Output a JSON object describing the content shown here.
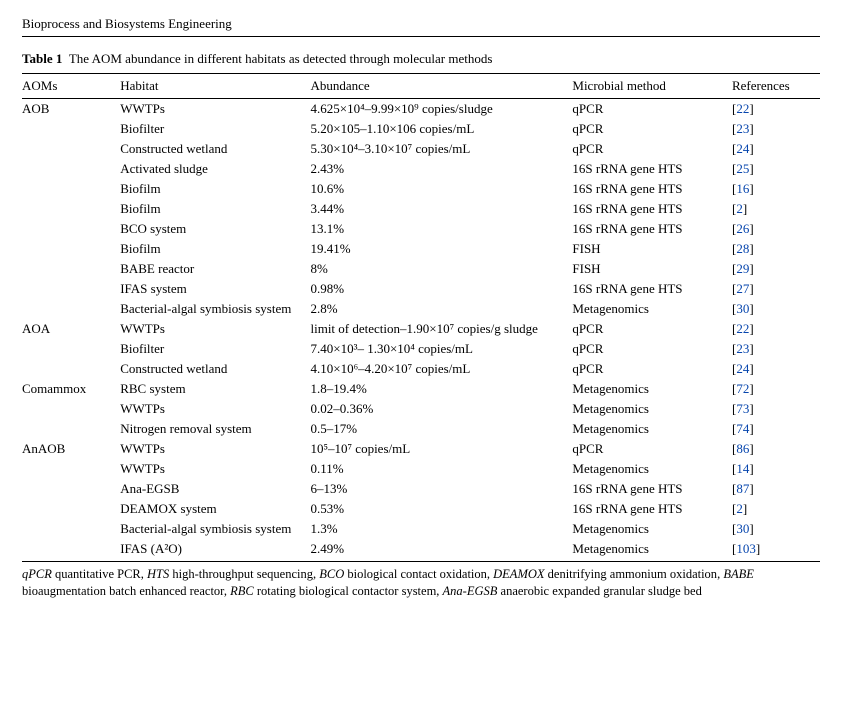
{
  "journal": "Bioprocess and Biosystems Engineering",
  "table": {
    "label": "Table 1",
    "caption": "The AOM abundance in different habitats as detected through molecular methods",
    "columns": [
      "AOMs",
      "Habitat",
      "Abundance",
      "Microbial method",
      "References"
    ],
    "rows": [
      {
        "group": "AOB",
        "groupFirst": true,
        "habitat": "WWTPs",
        "abundance": "4.625×10⁴–9.99×10⁹ copies/sludge",
        "method": "qPCR",
        "ref": "22"
      },
      {
        "group": "AOB",
        "habitat": "Biofilter",
        "abundance": "5.20×105–1.10×106 copies/mL",
        "method": "qPCR",
        "ref": "23"
      },
      {
        "group": "AOB",
        "habitat": "Constructed wetland",
        "abundance": "5.30×10⁴–3.10×10⁷ copies/mL",
        "method": "qPCR",
        "ref": "24"
      },
      {
        "group": "AOB",
        "habitat": "Activated sludge",
        "abundance": "2.43%",
        "method": "16S rRNA gene HTS",
        "ref": "25"
      },
      {
        "group": "AOB",
        "habitat": "Biofilm",
        "abundance": "10.6%",
        "method": "16S rRNA gene HTS",
        "ref": "16"
      },
      {
        "group": "AOB",
        "habitat": "Biofilm",
        "abundance": "3.44%",
        "method": "16S rRNA gene HTS",
        "ref": "2"
      },
      {
        "group": "AOB",
        "habitat": "BCO system",
        "abundance": "13.1%",
        "method": "16S rRNA gene HTS",
        "ref": "26"
      },
      {
        "group": "AOB",
        "habitat": "Biofilm",
        "abundance": "19.41%",
        "method": "FISH",
        "ref": "28"
      },
      {
        "group": "AOB",
        "habitat": "BABE reactor",
        "abundance": "8%",
        "method": "FISH",
        "ref": "29"
      },
      {
        "group": "AOB",
        "habitat": "IFAS system",
        "abundance": "0.98%",
        "method": "16S rRNA gene HTS",
        "ref": "27"
      },
      {
        "group": "AOB",
        "habitat": "Bacterial-algal symbiosis system",
        "abundance": "2.8%",
        "method": "Metagenomics",
        "ref": "30"
      },
      {
        "group": "AOA",
        "habitat": "WWTPs",
        "abundance": "limit of detection–1.90×10⁷ copies/g sludge",
        "method": "qPCR",
        "ref": "22"
      },
      {
        "group": "AOA",
        "habitat": "Biofilter",
        "abundance": "7.40×10³– 1.30×10⁴ copies/mL",
        "method": "qPCR",
        "ref": "23"
      },
      {
        "group": "AOA",
        "habitat": "Constructed wetland",
        "abundance": "4.10×10⁶–4.20×10⁷ copies/mL",
        "method": "qPCR",
        "ref": "24"
      },
      {
        "group": "Comammox",
        "habitat": "RBC system",
        "abundance": "1.8–19.4%",
        "method": "Metagenomics",
        "ref": "72"
      },
      {
        "group": "Comammox",
        "habitat": "WWTPs",
        "abundance": "0.02–0.36%",
        "method": "Metagenomics",
        "ref": "73"
      },
      {
        "group": "Comammox",
        "habitat": "Nitrogen removal system",
        "abundance": "0.5–17%",
        "method": "Metagenomics",
        "ref": "74"
      },
      {
        "group": "AnAOB",
        "habitat": "WWTPs",
        "abundance": "10⁵–10⁷ copies/mL",
        "method": "qPCR",
        "ref": "86"
      },
      {
        "group": "AnAOB",
        "habitat": "WWTPs",
        "abundance": "0.11%",
        "method": "Metagenomics",
        "ref": "14"
      },
      {
        "group": "AnAOB",
        "habitat": "Ana-EGSB",
        "abundance": "6–13%",
        "method": "16S rRNA gene HTS",
        "ref": "87"
      },
      {
        "group": "AnAOB",
        "habitat": "DEAMOX system",
        "abundance": "0.53%",
        "method": "16S rRNA gene HTS",
        "ref": "2"
      },
      {
        "group": "AnAOB",
        "habitat": "Bacterial-algal symbiosis system",
        "abundance": "1.3%",
        "method": "Metagenomics",
        "ref": "30"
      },
      {
        "group": "AnAOB",
        "habitat": "IFAS (A²O)",
        "abundance": "2.49%",
        "method": "Metagenomics",
        "ref": "103"
      }
    ],
    "footnote_terms": [
      {
        "abbr": "qPCR",
        "def": "quantitative PCR"
      },
      {
        "abbr": "HTS",
        "def": "high-throughput sequencing"
      },
      {
        "abbr": "BCO",
        "def": "biological contact oxidation"
      },
      {
        "abbr": "DEAMOX",
        "def": "denitrifying ammonium oxidation"
      },
      {
        "abbr": "BABE",
        "def": "bioaugmentation batch enhanced reactor"
      },
      {
        "abbr": "RBC",
        "def": "rotating biological contactor system"
      },
      {
        "abbr": "Ana-EGSB",
        "def": "anaerobic expanded granular sludge bed"
      }
    ]
  },
  "colors": {
    "text": "#000000",
    "link": "#0645ad",
    "rule": "#000000",
    "background": "#ffffff"
  },
  "typography": {
    "font_family": "Times New Roman",
    "body_fontsize_pt": 10,
    "footnote_fontsize_pt": 9.5
  }
}
